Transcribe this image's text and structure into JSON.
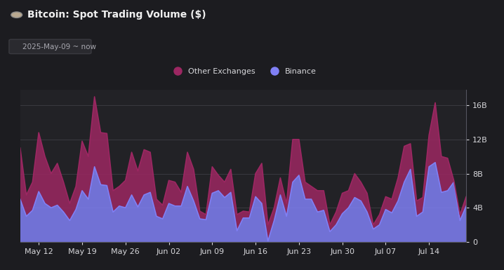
{
  "chart_data": {
    "type": "area",
    "title": "Bitcoin: Spot Trading Volume ($)",
    "subtitle": "2025-May-09 ~ now",
    "stacked": true,
    "legend": "upper center",
    "grid": true,
    "categories": [
      null,
      null,
      null,
      "May 12",
      null,
      null,
      null,
      null,
      null,
      null,
      "May 19",
      null,
      null,
      null,
      null,
      null,
      null,
      "May 26",
      null,
      null,
      null,
      null,
      null,
      null,
      "Jun 02",
      null,
      null,
      null,
      null,
      null,
      null,
      "Jun 09",
      null,
      null,
      null,
      null,
      null,
      null,
      "Jun 16",
      null,
      null,
      null,
      null,
      null,
      null,
      "Jun 23",
      null,
      null,
      null,
      null,
      null,
      null,
      "Jun 30",
      null,
      null,
      null,
      null,
      null,
      null,
      "Jul 07",
      null,
      null,
      null,
      null,
      null,
      null,
      "Jul 14",
      null,
      null,
      null,
      null,
      null,
      null
    ],
    "series": [
      {
        "name": "Other Exchanges",
        "color": "#9c2762",
        "values": [
          6000000000.0,
          2500000000.0,
          3300000000.0,
          6900000000.0,
          5500000000.0,
          4000000000.0,
          4900000000.0,
          3500000000.0,
          2000000000.0,
          2700000000.0,
          5800000000.0,
          5000000000.0,
          8200000000.0,
          6100000000.0,
          6100000000.0,
          2500000000.0,
          2300000000.0,
          3200000000.0,
          5000000000.0,
          4200000000.0,
          5300000000.0,
          4700000000.0,
          2000000000.0,
          1600000000.0,
          2700000000.0,
          2800000000.0,
          1600000000.0,
          4000000000.0,
          3700000000.0,
          900000000.0,
          600000000.0,
          3100000000.0,
          1800000000.0,
          1800000000.0,
          2700000000.0,
          1900000000.0,
          800000000.0,
          700000000.0,
          2700000000.0,
          4700000000.0,
          1900000000.0,
          1500000000.0,
          2000000000.0,
          1500000000.0,
          5000000000.0,
          4200000000.0,
          2000000000.0,
          1500000000.0,
          2500000000.0,
          2300000000.0,
          800000000.0,
          1500000000.0,
          2400000000.0,
          2000000000.0,
          2800000000.0,
          2200000000.0,
          2200000000.0,
          500000000.0,
          1200000000.0,
          1500000000.0,
          1600000000.0,
          2700000000.0,
          4200000000.0,
          3000000000.0,
          1800000000.0,
          1700000000.0,
          3700000000.0,
          7000000000.0,
          4200000000.0,
          3800000000.0,
          200000000.0,
          700000000.0,
          1100000000.0
        ]
      },
      {
        "name": "Binance",
        "color": "#8080f5",
        "values": [
          5000000000.0,
          3000000000.0,
          3700000000.0,
          5900000000.0,
          4500000000.0,
          4000000000.0,
          4300000000.0,
          3500000000.0,
          2500000000.0,
          3800000000.0,
          6000000000.0,
          5000000000.0,
          8800000000.0,
          6700000000.0,
          6600000000.0,
          3500000000.0,
          4200000000.0,
          4000000000.0,
          5500000000.0,
          4100000000.0,
          5500000000.0,
          5800000000.0,
          3000000000.0,
          2700000000.0,
          4500000000.0,
          4200000000.0,
          4200000000.0,
          6500000000.0,
          4800000000.0,
          2700000000.0,
          2600000000.0,
          5700000000.0,
          6000000000.0,
          5200000000.0,
          5800000000.0,
          1300000000.0,
          2800000000.0,
          2800000000.0,
          5300000000.0,
          4500000000.0,
          100000000.0,
          2500000000.0,
          5500000000.0,
          3000000000.0,
          7000000000.0,
          7800000000.0,
          5000000000.0,
          5000000000.0,
          3500000000.0,
          3700000000.0,
          1200000000.0,
          2000000000.0,
          3300000000.0,
          4000000000.0,
          5200000000.0,
          4800000000.0,
          3500000000.0,
          1500000000.0,
          2000000000.0,
          3800000000.0,
          3400000000.0,
          4800000000.0,
          7000000000.0,
          8500000000.0,
          3000000000.0,
          3500000000.0,
          8800000000.0,
          9300000000.0,
          5800000000.0,
          6000000000.0,
          7000000000.0,
          2500000000.0,
          4200000000.0
        ]
      }
    ],
    "ylim": [
      0,
      17800000000.0
    ],
    "yticks": [
      0,
      {
        "value": 4000000000.0,
        "label": "4B"
      },
      {
        "value": 8000000000.0,
        "label": "8B"
      },
      {
        "value": 12000000000.0,
        "label": "12B"
      },
      {
        "value": 16000000000.0,
        "label": "16B"
      }
    ]
  }
}
